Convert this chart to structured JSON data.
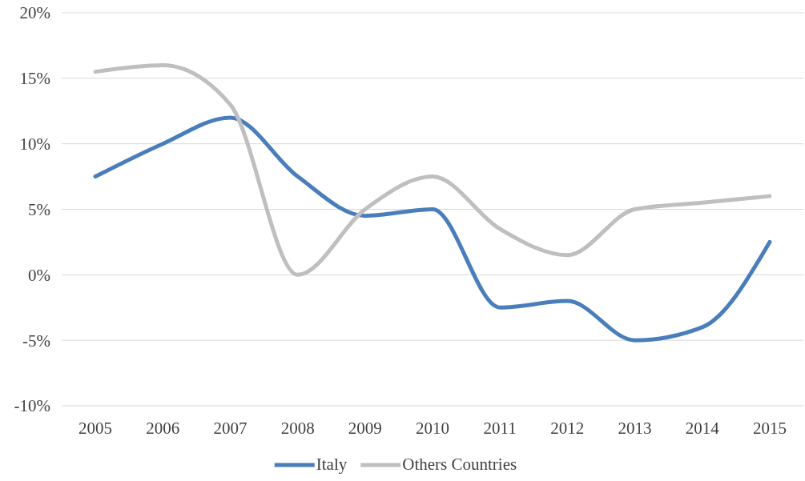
{
  "chart_data": {
    "type": "line",
    "categories": [
      "2005",
      "2006",
      "2007",
      "2008",
      "2009",
      "2010",
      "2011",
      "2012",
      "2013",
      "2014",
      "2015"
    ],
    "series": [
      {
        "name": "Italy",
        "color": "#4a7ebb",
        "values": [
          7.5,
          10,
          12,
          7.5,
          4.5,
          5,
          -2.5,
          -2,
          -5,
          -4,
          2.5
        ]
      },
      {
        "name": "Others Countries",
        "color": "#bfbfbf",
        "values": [
          15.5,
          16,
          13,
          0,
          5,
          7.5,
          3.5,
          1.5,
          5,
          5.5,
          6
        ]
      }
    ],
    "ylim": [
      -10,
      20
    ],
    "yticks": [
      {
        "value": -10,
        "label": "-10%"
      },
      {
        "value": -5,
        "label": "-5%"
      },
      {
        "value": 0,
        "label": "0%"
      },
      {
        "value": 5,
        "label": "5%"
      },
      {
        "value": 10,
        "label": "10%"
      },
      {
        "value": 15,
        "label": "15%"
      },
      {
        "value": 20,
        "label": "20%"
      }
    ],
    "grid": "y",
    "legend": "bottom",
    "marker": "none",
    "line_style": "solid"
  }
}
